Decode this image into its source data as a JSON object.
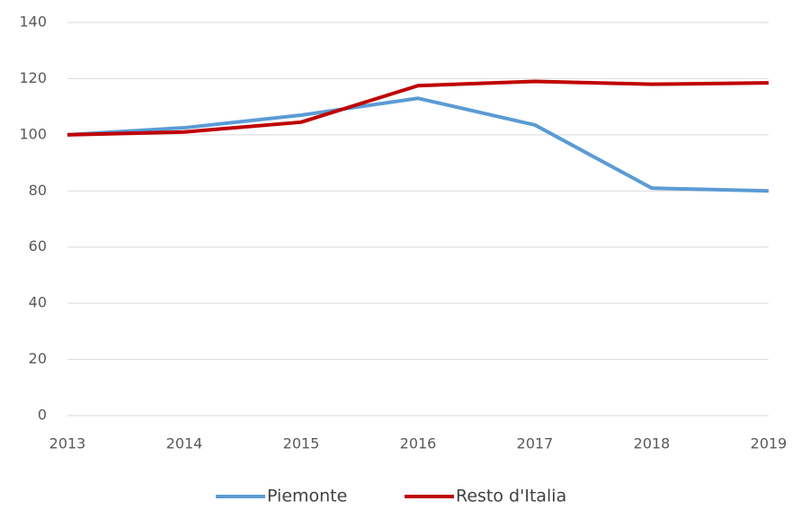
{
  "chart_data": {
    "type": "line",
    "x": [
      2013,
      2014,
      2015,
      2016,
      2017,
      2018,
      2019
    ],
    "xlim": [
      2013,
      2019
    ],
    "xticks": [
      2013,
      2014,
      2015,
      2016,
      2017,
      2018,
      2019
    ],
    "ylim": [
      0,
      140
    ],
    "yticks": [
      0,
      20,
      40,
      60,
      80,
      100,
      120,
      140
    ],
    "grid": true,
    "legend": "bottom",
    "series": [
      {
        "name": "Piemonte",
        "color": "#5b9bd5",
        "values": [
          100,
          102.5,
          107,
          113,
          103.5,
          81,
          80
        ]
      },
      {
        "name": "Resto d'Italia",
        "color": "#c00000",
        "values": [
          100,
          101,
          104.5,
          117.5,
          119,
          118,
          118.5
        ]
      }
    ]
  }
}
